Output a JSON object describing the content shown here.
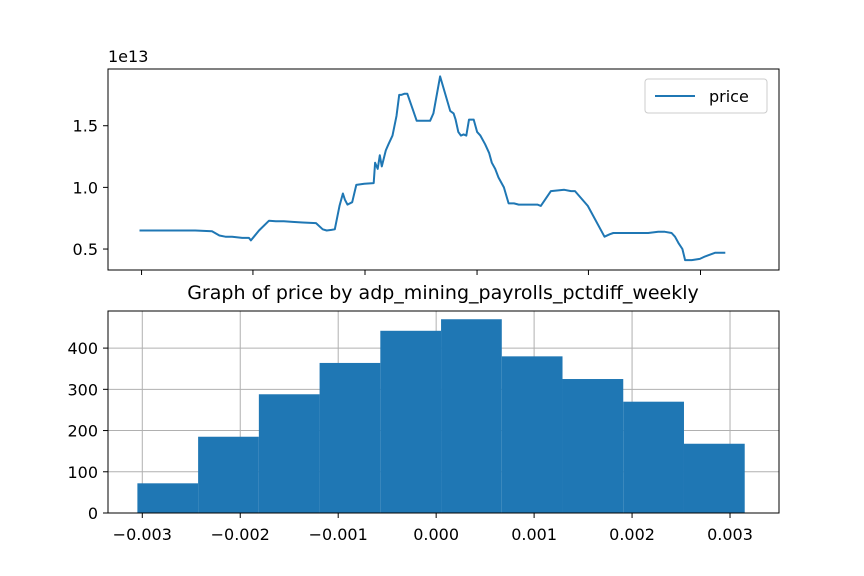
{
  "chart_data": [
    {
      "type": "line",
      "title": "",
      "xlabel": "",
      "ylabel": "",
      "offset_label": "1e13",
      "ylim": [
        0.33,
        1.96
      ],
      "yticks": [
        0.5,
        1.0,
        1.5
      ],
      "ytick_labels": [
        "0.5",
        "1.0",
        "1.5"
      ],
      "xlim": [
        0,
        1
      ],
      "xticks": [
        0.05,
        0.216,
        0.383,
        0.55,
        0.716,
        0.883
      ],
      "legend": "top-right",
      "color": "#1f77b4",
      "series": [
        {
          "name": "price",
          "x": [
            0.047,
            0.07,
            0.1,
            0.13,
            0.155,
            0.166,
            0.175,
            0.185,
            0.2,
            0.21,
            0.213,
            0.225,
            0.24,
            0.25,
            0.262,
            0.275,
            0.29,
            0.31,
            0.32,
            0.326,
            0.333,
            0.338,
            0.345,
            0.35,
            0.353,
            0.357,
            0.364,
            0.37,
            0.382,
            0.396,
            0.398,
            0.402,
            0.405,
            0.408,
            0.414,
            0.418,
            0.424,
            0.43,
            0.434,
            0.437,
            0.442,
            0.446,
            0.455,
            0.46,
            0.475,
            0.48,
            0.485,
            0.495,
            0.51,
            0.515,
            0.518,
            0.522,
            0.526,
            0.53,
            0.534,
            0.538,
            0.545,
            0.55,
            0.555,
            0.562,
            0.568,
            0.572,
            0.577,
            0.582,
            0.59,
            0.597,
            0.605,
            0.612,
            0.62,
            0.626,
            0.63,
            0.636,
            0.64,
            0.645,
            0.66,
            0.68,
            0.69,
            0.696,
            0.715,
            0.74,
            0.748,
            0.753,
            0.758,
            0.763,
            0.768,
            0.774,
            0.805,
            0.82,
            0.83,
            0.84,
            0.845,
            0.85,
            0.856,
            0.86,
            0.87,
            0.882,
            0.89,
            0.895,
            0.905,
            0.92
          ],
          "values": [
            0.65,
            0.65,
            0.65,
            0.65,
            0.645,
            0.61,
            0.6,
            0.6,
            0.59,
            0.59,
            0.57,
            0.65,
            0.73,
            0.725,
            0.725,
            0.72,
            0.715,
            0.71,
            0.66,
            0.65,
            0.655,
            0.66,
            0.85,
            0.95,
            0.9,
            0.86,
            0.88,
            1.02,
            1.03,
            1.035,
            1.2,
            1.15,
            1.26,
            1.17,
            1.3,
            1.35,
            1.42,
            1.58,
            1.75,
            1.75,
            1.76,
            1.76,
            1.62,
            1.54,
            1.54,
            1.54,
            1.6,
            1.9,
            1.62,
            1.6,
            1.55,
            1.45,
            1.42,
            1.43,
            1.42,
            1.55,
            1.55,
            1.45,
            1.42,
            1.35,
            1.28,
            1.2,
            1.15,
            1.08,
            1.0,
            0.87,
            0.87,
            0.86,
            0.86,
            0.86,
            0.86,
            0.86,
            0.86,
            0.85,
            0.97,
            0.98,
            0.97,
            0.97,
            0.85,
            0.6,
            0.62,
            0.63,
            0.63,
            0.63,
            0.63,
            0.63,
            0.63,
            0.64,
            0.64,
            0.63,
            0.6,
            0.55,
            0.5,
            0.41,
            0.41,
            0.42,
            0.44,
            0.45,
            0.47,
            0.47
          ]
        }
      ]
    },
    {
      "type": "bar",
      "title": "Graph of price by adp_mining_payrolls_pctdiff_weekly",
      "xlabel": "",
      "ylabel": "",
      "grid": true,
      "color": "#1f77b4",
      "xlim": [
        -0.00335,
        0.0035
      ],
      "ylim": [
        0,
        490
      ],
      "xticks": [
        -0.003,
        -0.002,
        -0.001,
        0.0,
        0.001,
        0.002,
        0.003
      ],
      "xtick_labels": [
        "−0.003",
        "−0.002",
        "−0.001",
        "0.000",
        "0.001",
        "0.002",
        "0.003"
      ],
      "yticks": [
        0,
        100,
        200,
        300,
        400
      ],
      "ytick_labels": [
        "0",
        "100",
        "200",
        "300",
        "400"
      ],
      "bin_edges": [
        -0.00305,
        -0.00243,
        -0.00181,
        -0.00119,
        -0.00057,
        5e-05,
        0.00067,
        0.00129,
        0.00191,
        0.00253,
        0.00315
      ],
      "values": [
        72,
        185,
        288,
        364,
        442,
        470,
        380,
        325,
        270,
        168
      ]
    }
  ]
}
